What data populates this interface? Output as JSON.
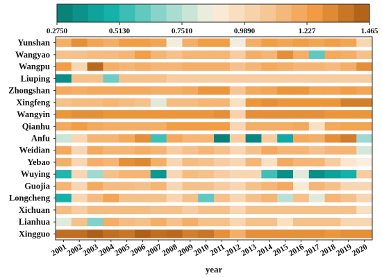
{
  "chart_data": {
    "type": "heatmap",
    "xlabel": "year",
    "ylabel": "",
    "years": [
      "2001",
      "2002",
      "2003",
      "2004",
      "2005",
      "2006",
      "2007",
      "2008",
      "2009",
      "2010",
      "2011",
      "2012",
      "2013",
      "2014",
      "2015",
      "2016",
      "2017",
      "2018",
      "2019",
      "2020"
    ],
    "rows": [
      "Yunshan",
      "Wangyao",
      "Wangpu",
      "Liuping",
      "Zhongshan",
      "Xingfeng",
      "Wangyin",
      "Qianhu",
      "Anfu",
      "Weidian",
      "Yebao",
      "Wuying",
      "Guojia",
      "Longcheng",
      "Xichuan",
      "Lianhua",
      "Xingguo"
    ],
    "colorbar": {
      "min": 0.275,
      "max": 1.465,
      "ticks": [
        "0.2750",
        "0.5130",
        "0.7510",
        "0.9890",
        "1.227",
        "1.465"
      ],
      "stops": [
        "#087a72",
        "#10b0a8",
        "#8fd6cc",
        "#fbf0df",
        "#f6c89a",
        "#f19a3f",
        "#a85a14"
      ]
    },
    "values": [
      [
        1.18,
        1.3,
        1.22,
        1.18,
        1.25,
        1.25,
        1.22,
        0.85,
        1.18,
        1.25,
        1.25,
        0.85,
        1.18,
        1.25,
        1.22,
        1.25,
        1.22,
        1.25,
        1.22,
        1.0
      ],
      [
        1.1,
        1.1,
        1.13,
        1.13,
        1.15,
        1.25,
        1.15,
        1.1,
        1.15,
        1.15,
        1.15,
        1.05,
        1.18,
        1.15,
        1.3,
        1.18,
        0.6,
        1.2,
        1.18,
        1.1
      ],
      [
        1.25,
        1.0,
        1.42,
        1.18,
        1.15,
        1.18,
        1.15,
        1.15,
        1.18,
        1.18,
        1.18,
        1.1,
        1.15,
        1.2,
        1.18,
        1.15,
        1.15,
        1.13,
        1.18,
        1.3
      ],
      [
        0.35,
        1.1,
        1.1,
        0.62,
        1.1,
        1.1,
        1.1,
        1.05,
        1.05,
        1.05,
        1.05,
        1.05,
        1.05,
        1.05,
        1.05,
        1.05,
        1.05,
        1.05,
        1.05,
        1.05
      ],
      [
        1.2,
        1.18,
        1.2,
        1.2,
        1.2,
        1.2,
        1.18,
        1.18,
        1.2,
        1.28,
        1.28,
        1.08,
        1.2,
        1.22,
        1.28,
        1.28,
        1.22,
        1.22,
        1.25,
        1.22
      ],
      [
        1.1,
        1.12,
        1.12,
        1.15,
        1.12,
        1.1,
        0.82,
        1.12,
        1.12,
        1.15,
        1.15,
        0.95,
        1.28,
        1.3,
        1.28,
        1.28,
        1.28,
        1.28,
        1.35,
        1.35
      ],
      [
        1.28,
        1.3,
        1.3,
        1.28,
        1.28,
        1.28,
        1.28,
        1.28,
        1.28,
        1.28,
        1.3,
        1.02,
        1.3,
        1.3,
        1.3,
        1.3,
        1.3,
        1.28,
        1.28,
        1.28
      ],
      [
        1.2,
        1.25,
        1.2,
        1.18,
        1.18,
        1.18,
        1.18,
        1.25,
        1.25,
        1.25,
        1.25,
        1.0,
        1.18,
        1.18,
        1.18,
        1.2,
        0.95,
        1.2,
        1.22,
        1.22
      ],
      [
        0.78,
        1.0,
        1.15,
        1.15,
        1.2,
        1.3,
        0.55,
        1.2,
        1.15,
        1.15,
        0.3,
        1.05,
        0.32,
        1.05,
        0.45,
        1.2,
        1.18,
        1.3,
        1.36,
        0.7
      ],
      [
        1.2,
        1.0,
        1.2,
        1.15,
        1.15,
        1.18,
        1.15,
        1.05,
        1.1,
        1.15,
        1.1,
        1.0,
        1.1,
        1.2,
        1.15,
        1.15,
        1.1,
        1.15,
        1.15,
        0.8
      ],
      [
        1.18,
        1.0,
        1.18,
        1.15,
        1.3,
        1.32,
        1.18,
        1.0,
        1.12,
        1.1,
        1.05,
        1.0,
        1.15,
        0.95,
        1.2,
        1.15,
        1.15,
        1.05,
        0.92,
        0.88
      ],
      [
        0.5,
        1.0,
        0.7,
        1.1,
        1.15,
        1.15,
        0.38,
        1.0,
        1.12,
        1.1,
        1.05,
        1.0,
        1.0,
        0.55,
        0.35,
        0.82,
        0.35,
        0.42,
        0.48,
        1.05
      ],
      [
        1.15,
        1.0,
        1.2,
        1.12,
        1.12,
        1.1,
        1.15,
        1.0,
        1.1,
        1.1,
        1.05,
        1.0,
        1.1,
        1.15,
        1.2,
        0.9,
        1.15,
        1.1,
        1.0,
        1.0
      ],
      [
        0.48,
        1.0,
        1.12,
        1.22,
        1.1,
        1.1,
        1.1,
        1.0,
        1.1,
        0.6,
        1.1,
        1.0,
        1.1,
        1.15,
        0.75,
        1.1,
        0.82,
        1.15,
        1.1,
        1.0
      ],
      [
        1.12,
        1.05,
        1.12,
        1.12,
        1.12,
        1.12,
        1.1,
        1.1,
        1.05,
        1.1,
        1.1,
        1.0,
        1.1,
        1.1,
        1.1,
        1.1,
        1.1,
        1.1,
        1.1,
        0.95
      ],
      [
        0.82,
        1.1,
        0.65,
        1.18,
        1.12,
        1.1,
        1.18,
        1.1,
        1.18,
        1.1,
        1.1,
        1.0,
        1.1,
        1.1,
        0.95,
        1.1,
        1.1,
        1.1,
        1.0,
        1.0
      ],
      [
        1.4,
        1.4,
        1.45,
        1.4,
        1.38,
        1.45,
        1.4,
        1.42,
        1.35,
        1.38,
        1.3,
        1.18,
        1.3,
        1.3,
        1.3,
        1.3,
        1.3,
        1.28,
        1.3,
        1.3
      ]
    ]
  }
}
